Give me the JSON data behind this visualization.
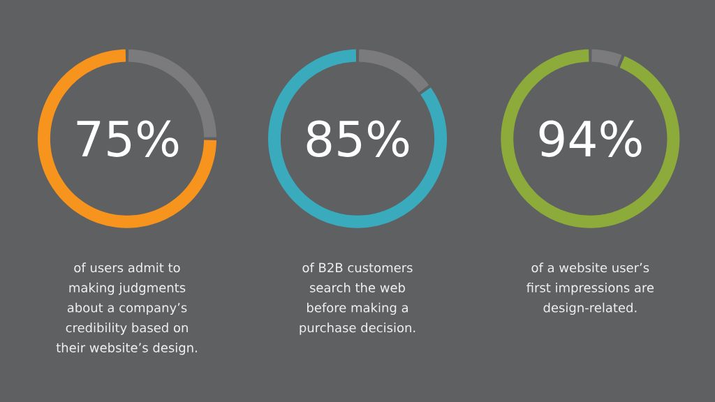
{
  "chart_data": [
    {
      "type": "donut",
      "categories": [
        null,
        null
      ],
      "values": [
        75,
        25
      ],
      "colors": [
        "#f7941d",
        "#7b7b7d"
      ],
      "value_labels": [
        "75%",
        null
      ],
      "annotations": [
        "of users admit to",
        "making judgments",
        "about a company’s",
        "credibility based on",
        "their website’s design."
      ]
    },
    {
      "type": "donut",
      "categories": [
        null,
        null
      ],
      "values": [
        85,
        15
      ],
      "colors": [
        "#3aaabd",
        "#7b7b7d"
      ],
      "value_labels": [
        "85%",
        null
      ],
      "annotations": [
        "of B2B customers",
        "search the web",
        "before making a",
        "purchase decision."
      ]
    },
    {
      "type": "donut",
      "categories": [
        null,
        null
      ],
      "values": [
        94,
        6
      ],
      "colors": [
        "#8dab3b",
        "#7b7b7d"
      ],
      "value_labels": [
        "94%",
        null
      ],
      "annotations": [
        "of a website user’s",
        "first impressions are",
        "design-related."
      ]
    }
  ]
}
